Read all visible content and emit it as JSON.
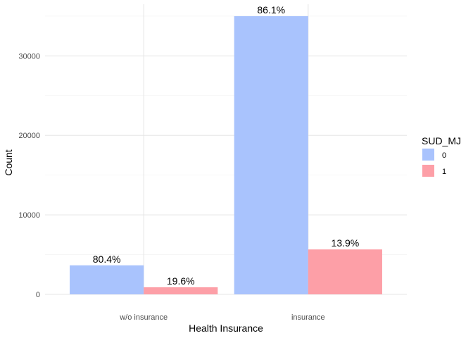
{
  "chart_data": {
    "type": "bar",
    "xlabel": "Health Insurance",
    "ylabel": "Count",
    "categories": [
      "w/o insurance",
      "insurance"
    ],
    "ylim": [
      0,
      36500
    ],
    "yticks": [
      0,
      10000,
      20000,
      30000
    ],
    "grid": true,
    "legend": {
      "title": "SUD_MJ",
      "placement": "right"
    },
    "series": [
      {
        "name": "0",
        "color": "#a9c3fd",
        "values": [
          3650,
          35000
        ],
        "labels": [
          "80.4%",
          "86.1%"
        ]
      },
      {
        "name": "1",
        "color": "#fd9fa7",
        "values": [
          890,
          5650
        ],
        "labels": [
          "19.6%",
          "13.9%"
        ]
      }
    ]
  }
}
